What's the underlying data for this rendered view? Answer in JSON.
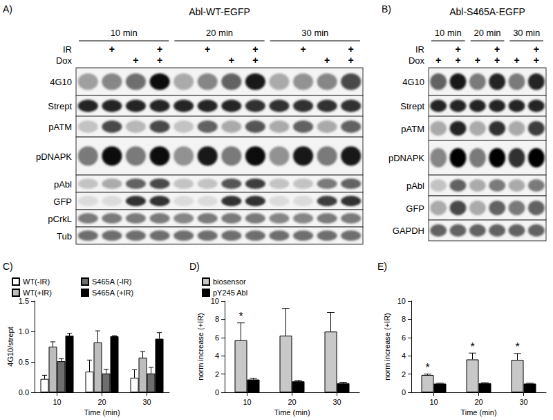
{
  "panels": [
    {
      "panel_label": "A)",
      "title": "Abl-WT-EGFP",
      "times": [
        "10 min",
        "20 min",
        "30 min"
      ],
      "mark": "+",
      "conditions": [
        {
          "name": "IR",
          "present": [
            false,
            true,
            false,
            true,
            false,
            true,
            false,
            true,
            false,
            true,
            false,
            true
          ]
        },
        {
          "name": "Dox",
          "present": [
            false,
            false,
            true,
            true,
            false,
            false,
            true,
            true,
            false,
            false,
            true,
            true
          ]
        }
      ],
      "blots": [
        {
          "name": "4G10",
          "bands": [
            0.35,
            0.45,
            0.55,
            0.95,
            0.3,
            0.45,
            0.6,
            0.9,
            0.3,
            0.4,
            0.45,
            0.7
          ]
        },
        {
          "name": "Strept",
          "bands": [
            0.85,
            0.85,
            0.85,
            0.85,
            0.85,
            0.85,
            0.85,
            0.8,
            0.8,
            0.8,
            0.8,
            0.8
          ]
        },
        {
          "name": "pATM",
          "bands": [
            0.2,
            0.7,
            0.25,
            0.7,
            0.2,
            0.6,
            0.3,
            0.65,
            0.3,
            0.6,
            0.3,
            0.6
          ]
        },
        {
          "name": "pDNAPK",
          "bands": [
            0.5,
            0.95,
            0.5,
            0.95,
            0.4,
            0.9,
            0.5,
            0.95,
            0.4,
            0.9,
            0.5,
            0.9
          ]
        },
        {
          "name": "pAbl",
          "bands": [
            0.2,
            0.3,
            0.6,
            0.7,
            0.2,
            0.2,
            0.65,
            0.75,
            0.2,
            0.2,
            0.5,
            0.6
          ]
        },
        {
          "name": "GFP",
          "bands": [
            0.1,
            0.1,
            0.8,
            0.8,
            0.1,
            0.1,
            0.8,
            0.8,
            0.1,
            0.1,
            0.75,
            0.8
          ]
        },
        {
          "name": "pCrkL",
          "bands": [
            0.5,
            0.5,
            0.5,
            0.5,
            0.45,
            0.5,
            0.5,
            0.5,
            0.45,
            0.45,
            0.5,
            0.5
          ]
        },
        {
          "name": "Tub",
          "bands": [
            0.55,
            0.55,
            0.55,
            0.55,
            0.55,
            0.55,
            0.55,
            0.55,
            0.55,
            0.55,
            0.55,
            0.55
          ]
        }
      ]
    },
    {
      "panel_label": "B)",
      "title": "Abl-S465A-EGFP",
      "times": [
        "10 min",
        "20 min",
        "30 min"
      ],
      "mark": "+",
      "conditions": [
        {
          "name": "IR",
          "present": [
            false,
            true,
            false,
            true,
            false,
            true
          ]
        },
        {
          "name": "Dox",
          "present": [
            true,
            true,
            true,
            true,
            true,
            true
          ]
        }
      ],
      "blots": [
        {
          "name": "4G10",
          "bands": [
            0.6,
            0.9,
            0.5,
            0.85,
            0.5,
            0.85
          ]
        },
        {
          "name": "Strept",
          "bands": [
            0.85,
            0.85,
            0.85,
            0.85,
            0.85,
            0.85
          ]
        },
        {
          "name": "pATM",
          "bands": [
            0.3,
            0.85,
            0.3,
            0.8,
            0.3,
            0.75
          ]
        },
        {
          "name": "pDNAPK",
          "bands": [
            0.45,
            1,
            0.5,
            1,
            0.8,
            1
          ]
        },
        {
          "name": "pAbl",
          "bands": [
            0.2,
            0.6,
            0.3,
            0.5,
            0.3,
            0.5
          ]
        },
        {
          "name": "GFP",
          "bands": [
            0.3,
            0.7,
            0.3,
            0.6,
            0.5,
            0.6
          ]
        },
        {
          "name": "GAPDH",
          "bands": [
            0.6,
            0.6,
            0.6,
            0.6,
            0.6,
            0.6
          ]
        }
      ]
    }
  ],
  "chart_data": [
    {
      "panel_label": "C)",
      "type": "bar",
      "categories": [
        "10",
        "20",
        "30"
      ],
      "x_label": "Time (min)",
      "y_label": "4G10/strept",
      "ylim": [
        0,
        1.5
      ],
      "yticks": [
        {
          "value": 0,
          "label": "0.0"
        },
        {
          "value": 0.5,
          "label": "0.5"
        },
        {
          "value": 1,
          "label": "1.0"
        },
        {
          "value": 1.5,
          "label": "1.5"
        }
      ],
      "grid": false,
      "legend": "top-left",
      "series": [
        {
          "name": "WT(-IR)",
          "color": "#ffffff",
          "values": [
            0.22,
            0.34,
            0.24
          ],
          "errors": [
            0.06,
            0.19,
            0.13
          ]
        },
        {
          "name": "WT(+IR)",
          "color": "#bdbdbd",
          "values": [
            0.75,
            0.82,
            0.57
          ],
          "errors": [
            0.08,
            0.19,
            0.1
          ]
        },
        {
          "name": "S465A (-IR)",
          "color": "#6e6e6e",
          "values": [
            0.51,
            0.31,
            0.31
          ],
          "errors": [
            0.04,
            0.07,
            0.1
          ]
        },
        {
          "name": "S465A (+IR)",
          "color": "#000000",
          "values": [
            0.93,
            0.92,
            0.88
          ],
          "errors": [
            0.04,
            0.01,
            0.1
          ]
        }
      ]
    },
    {
      "panel_label": "D)",
      "type": "bar",
      "categories": [
        "10",
        "20",
        "30"
      ],
      "x_label": "Time (min)",
      "y_label": "norm increase (+IR)",
      "ylim": [
        0,
        10
      ],
      "yticks": [
        0,
        2,
        4,
        6,
        8,
        10
      ],
      "grid": false,
      "legend": "top-left",
      "series": [
        {
          "name": "biosensor",
          "color": "#c8c8c8",
          "values": [
            5.7,
            6.2,
            6.65
          ],
          "errors": [
            1.9,
            3.0,
            2.1
          ],
          "annotations": [
            "*",
            null,
            null
          ]
        },
        {
          "name": "pY245 Abl",
          "color": "#000000",
          "values": [
            1.4,
            1.2,
            1.0
          ],
          "errors": [
            0.15,
            0.1,
            0.1
          ]
        }
      ]
    },
    {
      "panel_label": "E)",
      "type": "bar",
      "categories": [
        "10",
        "20",
        "30"
      ],
      "x_label": "Time (min)",
      "y_label": "norm increase (+IR)",
      "ylim": [
        0,
        10
      ],
      "yticks": [
        0,
        2,
        4,
        6,
        8,
        10
      ],
      "grid": false,
      "series": [
        {
          "color": "#c8c8c8",
          "values": [
            1.9,
            3.6,
            3.55
          ],
          "errors": [
            0.1,
            0.7,
            0.7
          ],
          "annotations": [
            "*",
            "*",
            "*"
          ]
        },
        {
          "color": "#000000",
          "values": [
            0.95,
            1.0,
            0.95
          ],
          "errors": [
            0.05,
            0.05,
            0.05
          ]
        }
      ]
    }
  ]
}
